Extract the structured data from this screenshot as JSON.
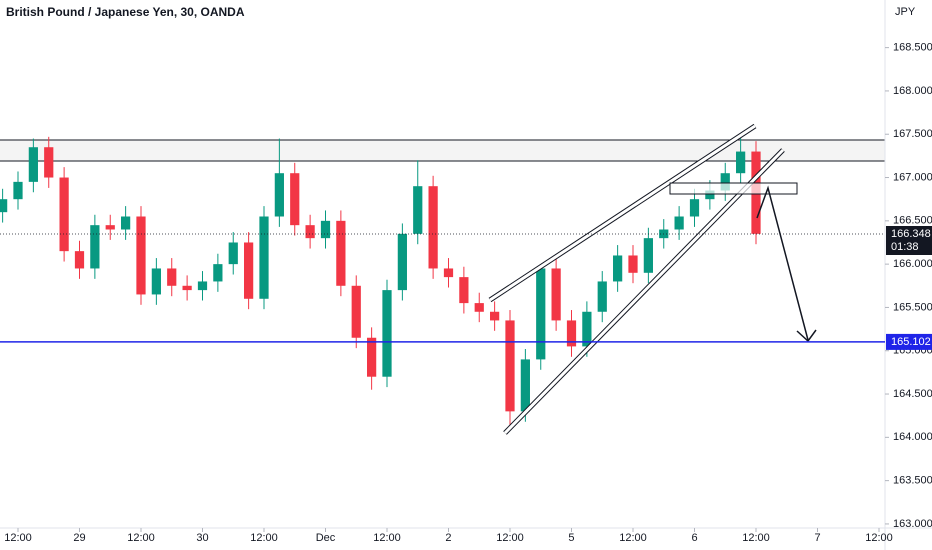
{
  "chart_data": {
    "type": "candlestick",
    "title": "British Pound / Japanese Yen, 30, OANDA",
    "y_axis_label": "JPY",
    "up_color": "#089981",
    "down_color": "#f23645",
    "x": [
      -3,
      0,
      3,
      6,
      9,
      12,
      15,
      18,
      21,
      24,
      27,
      30,
      33,
      36,
      39,
      42,
      45,
      48,
      51,
      54,
      57,
      60,
      63,
      66,
      69,
      72,
      75,
      78,
      81,
      84,
      87,
      90,
      93,
      96,
      99,
      102,
      105,
      108,
      111,
      114,
      117,
      120,
      123,
      126,
      129,
      132,
      135,
      138,
      141,
      144
    ],
    "open": [
      166.6,
      166.75,
      166.95,
      167.35,
      167.0,
      166.15,
      165.95,
      166.45,
      166.4,
      166.55,
      165.65,
      165.95,
      165.75,
      165.7,
      165.8,
      166.0,
      166.25,
      165.6,
      166.55,
      167.05,
      166.45,
      166.3,
      166.5,
      165.75,
      165.15,
      164.7,
      165.7,
      166.35,
      166.9,
      165.95,
      165.85,
      165.55,
      165.45,
      165.35,
      164.3,
      164.9,
      165.95,
      165.35,
      165.05,
      165.45,
      165.8,
      166.1,
      165.9,
      166.3,
      166.4,
      166.55,
      166.75,
      166.85,
      167.05,
      167.3
    ],
    "high": [
      166.87,
      167.07,
      167.45,
      167.47,
      167.12,
      166.27,
      166.57,
      166.57,
      166.67,
      166.67,
      166.07,
      166.07,
      165.87,
      165.92,
      166.12,
      166.37,
      166.37,
      166.67,
      167.45,
      167.17,
      166.57,
      166.62,
      166.62,
      165.87,
      165.27,
      165.82,
      166.47,
      167.2,
      167.02,
      166.07,
      165.97,
      165.67,
      165.57,
      165.47,
      165.02,
      166.0,
      166.07,
      165.47,
      165.57,
      165.92,
      166.22,
      166.22,
      166.42,
      166.52,
      166.67,
      166.87,
      166.97,
      167.17,
      167.5,
      167.42
    ],
    "low": [
      166.48,
      166.63,
      166.83,
      166.88,
      166.03,
      165.83,
      165.83,
      166.28,
      166.28,
      165.53,
      165.53,
      165.63,
      165.58,
      165.58,
      165.68,
      165.88,
      165.48,
      165.48,
      166.43,
      166.33,
      166.18,
      166.18,
      165.63,
      165.03,
      164.55,
      164.58,
      165.58,
      166.23,
      165.83,
      165.73,
      165.43,
      165.33,
      165.23,
      164.1,
      164.18,
      164.78,
      165.23,
      164.93,
      164.93,
      165.33,
      165.68,
      165.78,
      165.78,
      166.18,
      166.28,
      166.43,
      166.63,
      166.73,
      166.93,
      166.23
    ],
    "close": [
      166.75,
      166.95,
      167.35,
      167.0,
      166.15,
      165.95,
      166.45,
      166.4,
      166.55,
      165.65,
      165.95,
      165.75,
      165.7,
      165.8,
      166.0,
      166.25,
      165.6,
      166.55,
      167.05,
      166.45,
      166.3,
      166.5,
      165.75,
      165.15,
      164.7,
      165.7,
      166.35,
      166.9,
      165.95,
      165.85,
      165.55,
      165.45,
      165.35,
      164.3,
      164.9,
      165.95,
      165.35,
      165.05,
      165.45,
      165.8,
      166.1,
      165.9,
      166.3,
      166.4,
      166.55,
      166.75,
      166.85,
      167.05,
      167.3,
      166.35
    ],
    "xlim": [
      -3.51,
      169.17
    ],
    "ylim": [
      162.93,
      169.05
    ],
    "xticks": [
      {
        "value": 0,
        "label": "12:00"
      },
      {
        "value": 12,
        "label": "29"
      },
      {
        "value": 24,
        "label": "12:00"
      },
      {
        "value": 36,
        "label": "30"
      },
      {
        "value": 48,
        "label": "12:00"
      },
      {
        "value": 60,
        "label": "Dec"
      },
      {
        "value": 72,
        "label": "12:00"
      },
      {
        "value": 84,
        "label": "2"
      },
      {
        "value": 96,
        "label": "12:00"
      },
      {
        "value": 108,
        "label": "5"
      },
      {
        "value": 120,
        "label": "12:00"
      },
      {
        "value": 132,
        "label": "6"
      },
      {
        "value": 144,
        "label": "12:00"
      },
      {
        "value": 156,
        "label": "7"
      },
      {
        "value": 168,
        "label": "12:00"
      }
    ],
    "yticks": [
      {
        "value": 163.0,
        "label": "163.000"
      },
      {
        "value": 163.5,
        "label": "163.500"
      },
      {
        "value": 164.0,
        "label": "164.000"
      },
      {
        "value": 164.5,
        "label": "164.500"
      },
      {
        "value": 165.0,
        "label": "165.000"
      },
      {
        "value": 165.5,
        "label": "165.500"
      },
      {
        "value": 166.0,
        "label": "166.000"
      },
      {
        "value": 166.5,
        "label": "166.500"
      },
      {
        "value": 167.0,
        "label": "167.000"
      },
      {
        "value": 167.5,
        "label": "167.500"
      },
      {
        "value": 168.0,
        "label": "168.000"
      },
      {
        "value": 168.5,
        "label": "168.500"
      }
    ],
    "last_price": {
      "value": 166.348,
      "label": "166.348",
      "countdown": "01:38"
    },
    "horizontal_line": {
      "value": 165.102,
      "label": "165.102",
      "color": "#1f24e8"
    }
  }
}
